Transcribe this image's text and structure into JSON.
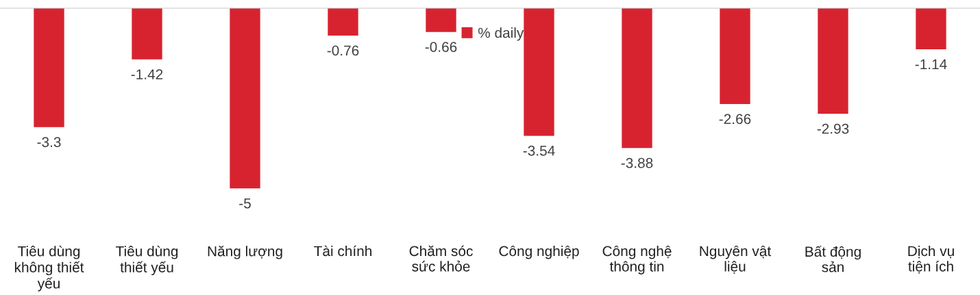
{
  "chart_data": {
    "type": "bar",
    "categories": [
      "Tiêu dùng không thiết yếu",
      "Tiêu dùng thiết yếu",
      "Năng lượng",
      "Tài chính",
      "Chăm sóc sức khỏe",
      "Công nghiệp",
      "Công nghệ thông tin",
      "Nguyên vật liệu",
      "Bất động sản",
      "Dịch vụ tiện ích"
    ],
    "series": [
      {
        "name": "% daily",
        "color": "#d7232f",
        "values": [
          -3.3,
          -1.42,
          -5,
          -0.76,
          -0.66,
          -3.54,
          -3.88,
          -2.66,
          -2.93,
          -1.14
        ]
      }
    ],
    "data_labels": true,
    "legend": "top",
    "grid": false
  }
}
